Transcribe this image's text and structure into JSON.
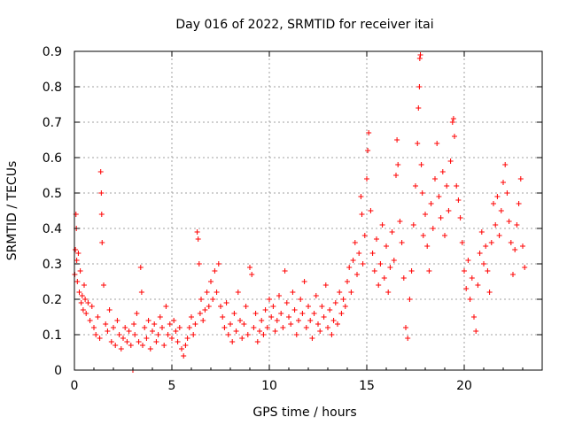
{
  "chart_data": {
    "type": "scatter",
    "title": "Day 016 of 2022, SRMTID for receiver itai",
    "xlabel": "GPS time / hours",
    "ylabel": "SRMTID / TECUs",
    "xlim": [
      0,
      24
    ],
    "ylim": [
      0,
      0.9
    ],
    "xticks": [
      0,
      5,
      10,
      15,
      20
    ],
    "xtick_labels": [
      "0",
      "5",
      "10",
      "15",
      "20"
    ],
    "yticks": [
      0,
      0.1,
      0.2,
      0.3,
      0.4,
      0.5,
      0.6,
      0.7,
      0.8,
      0.9
    ],
    "ytick_labels": [
      "0",
      "0.1",
      "0.2",
      "0.3",
      "0.4",
      "0.5",
      "0.6",
      "0.7",
      "0.8",
      "0.9"
    ],
    "grid": true,
    "marker": "+",
    "series": [
      {
        "name": "SRMTID",
        "color": "#ff0000",
        "points": [
          [
            0.02,
            0.27
          ],
          [
            0.05,
            0.34
          ],
          [
            0.08,
            0.44
          ],
          [
            0.1,
            0.4
          ],
          [
            0.12,
            0.31
          ],
          [
            0.15,
            0.25
          ],
          [
            0.2,
            0.33
          ],
          [
            0.25,
            0.22
          ],
          [
            0.3,
            0.28
          ],
          [
            0.35,
            0.19
          ],
          [
            0.4,
            0.21
          ],
          [
            0.45,
            0.17
          ],
          [
            0.5,
            0.24
          ],
          [
            0.55,
            0.2
          ],
          [
            0.6,
            0.16
          ],
          [
            0.7,
            0.19
          ],
          [
            0.8,
            0.14
          ],
          [
            0.9,
            0.18
          ],
          [
            1.0,
            0.12
          ],
          [
            1.1,
            0.1
          ],
          [
            1.2,
            0.15
          ],
          [
            1.3,
            0.09
          ],
          [
            1.35,
            0.56
          ],
          [
            1.38,
            0.5
          ],
          [
            1.4,
            0.44
          ],
          [
            1.42,
            0.36
          ],
          [
            1.5,
            0.24
          ],
          [
            1.6,
            0.13
          ],
          [
            1.7,
            0.11
          ],
          [
            1.8,
            0.17
          ],
          [
            1.9,
            0.08
          ],
          [
            2.0,
            0.12
          ],
          [
            2.1,
            0.07
          ],
          [
            2.2,
            0.14
          ],
          [
            2.3,
            0.1
          ],
          [
            2.4,
            0.06
          ],
          [
            2.5,
            0.09
          ],
          [
            2.6,
            0.12
          ],
          [
            2.7,
            0.08
          ],
          [
            2.8,
            0.11
          ],
          [
            2.9,
            0.07
          ],
          [
            3.0,
            0.0
          ],
          [
            3.05,
            0.13
          ],
          [
            3.1,
            0.1
          ],
          [
            3.2,
            0.16
          ],
          [
            3.3,
            0.08
          ],
          [
            3.4,
            0.29
          ],
          [
            3.45,
            0.22
          ],
          [
            3.5,
            0.07
          ],
          [
            3.6,
            0.12
          ],
          [
            3.7,
            0.09
          ],
          [
            3.8,
            0.14
          ],
          [
            3.9,
            0.06
          ],
          [
            4.0,
            0.11
          ],
          [
            4.1,
            0.13
          ],
          [
            4.2,
            0.08
          ],
          [
            4.3,
            0.1
          ],
          [
            4.4,
            0.15
          ],
          [
            4.5,
            0.12
          ],
          [
            4.6,
            0.07
          ],
          [
            4.7,
            0.18
          ],
          [
            4.8,
            0.1
          ],
          [
            4.9,
            0.13
          ],
          [
            5.0,
            0.09
          ],
          [
            5.1,
            0.14
          ],
          [
            5.2,
            0.11
          ],
          [
            5.3,
            0.08
          ],
          [
            5.4,
            0.12
          ],
          [
            5.5,
            0.06
          ],
          [
            5.6,
            0.04
          ],
          [
            5.7,
            0.07
          ],
          [
            5.8,
            0.09
          ],
          [
            5.9,
            0.12
          ],
          [
            6.0,
            0.15
          ],
          [
            6.1,
            0.1
          ],
          [
            6.2,
            0.13
          ],
          [
            6.3,
            0.39
          ],
          [
            6.35,
            0.37
          ],
          [
            6.4,
            0.3
          ],
          [
            6.45,
            0.16
          ],
          [
            6.5,
            0.2
          ],
          [
            6.6,
            0.14
          ],
          [
            6.7,
            0.17
          ],
          [
            6.8,
            0.22
          ],
          [
            6.9,
            0.18
          ],
          [
            7.0,
            0.25
          ],
          [
            7.1,
            0.2
          ],
          [
            7.2,
            0.28
          ],
          [
            7.3,
            0.22
          ],
          [
            7.4,
            0.3
          ],
          [
            7.5,
            0.18
          ],
          [
            7.6,
            0.15
          ],
          [
            7.7,
            0.12
          ],
          [
            7.8,
            0.19
          ],
          [
            7.9,
            0.1
          ],
          [
            8.0,
            0.13
          ],
          [
            8.1,
            0.08
          ],
          [
            8.2,
            0.16
          ],
          [
            8.3,
            0.11
          ],
          [
            8.4,
            0.22
          ],
          [
            8.5,
            0.14
          ],
          [
            8.6,
            0.09
          ],
          [
            8.7,
            0.13
          ],
          [
            8.8,
            0.18
          ],
          [
            8.9,
            0.1
          ],
          [
            9.0,
            0.29
          ],
          [
            9.1,
            0.27
          ],
          [
            9.2,
            0.12
          ],
          [
            9.3,
            0.16
          ],
          [
            9.4,
            0.08
          ],
          [
            9.5,
            0.11
          ],
          [
            9.6,
            0.14
          ],
          [
            9.7,
            0.1
          ],
          [
            9.8,
            0.17
          ],
          [
            9.9,
            0.12
          ],
          [
            10.0,
            0.2
          ],
          [
            10.1,
            0.15
          ],
          [
            10.2,
            0.18
          ],
          [
            10.3,
            0.11
          ],
          [
            10.4,
            0.14
          ],
          [
            10.5,
            0.21
          ],
          [
            10.6,
            0.16
          ],
          [
            10.7,
            0.12
          ],
          [
            10.8,
            0.28
          ],
          [
            10.9,
            0.19
          ],
          [
            11.0,
            0.15
          ],
          [
            11.1,
            0.13
          ],
          [
            11.2,
            0.22
          ],
          [
            11.3,
            0.17
          ],
          [
            11.4,
            0.1
          ],
          [
            11.5,
            0.14
          ],
          [
            11.6,
            0.2
          ],
          [
            11.7,
            0.16
          ],
          [
            11.8,
            0.25
          ],
          [
            11.9,
            0.12
          ],
          [
            12.0,
            0.18
          ],
          [
            12.1,
            0.14
          ],
          [
            12.2,
            0.09
          ],
          [
            12.3,
            0.16
          ],
          [
            12.4,
            0.21
          ],
          [
            12.5,
            0.13
          ],
          [
            12.6,
            0.11
          ],
          [
            12.7,
            0.18
          ],
          [
            12.8,
            0.15
          ],
          [
            12.9,
            0.24
          ],
          [
            13.0,
            0.12
          ],
          [
            13.1,
            0.17
          ],
          [
            13.2,
            0.1
          ],
          [
            13.3,
            0.14
          ],
          [
            13.4,
            0.19
          ],
          [
            13.5,
            0.13
          ],
          [
            13.6,
            0.22
          ],
          [
            13.7,
            0.16
          ],
          [
            13.8,
            0.2
          ],
          [
            13.9,
            0.18
          ],
          [
            14.0,
            0.25
          ],
          [
            14.1,
            0.29
          ],
          [
            14.2,
            0.22
          ],
          [
            14.3,
            0.31
          ],
          [
            14.4,
            0.36
          ],
          [
            14.5,
            0.27
          ],
          [
            14.6,
            0.33
          ],
          [
            14.7,
            0.49
          ],
          [
            14.75,
            0.44
          ],
          [
            14.8,
            0.3
          ],
          [
            14.9,
            0.38
          ],
          [
            15.0,
            0.54
          ],
          [
            15.05,
            0.62
          ],
          [
            15.1,
            0.67
          ],
          [
            15.2,
            0.45
          ],
          [
            15.3,
            0.33
          ],
          [
            15.4,
            0.28
          ],
          [
            15.5,
            0.37
          ],
          [
            15.6,
            0.24
          ],
          [
            15.7,
            0.3
          ],
          [
            15.8,
            0.41
          ],
          [
            15.9,
            0.26
          ],
          [
            16.0,
            0.35
          ],
          [
            16.1,
            0.22
          ],
          [
            16.2,
            0.29
          ],
          [
            16.3,
            0.39
          ],
          [
            16.4,
            0.31
          ],
          [
            16.5,
            0.55
          ],
          [
            16.55,
            0.65
          ],
          [
            16.6,
            0.58
          ],
          [
            16.7,
            0.42
          ],
          [
            16.8,
            0.36
          ],
          [
            16.9,
            0.26
          ],
          [
            17.0,
            0.12
          ],
          [
            17.1,
            0.09
          ],
          [
            17.2,
            0.2
          ],
          [
            17.3,
            0.28
          ],
          [
            17.4,
            0.41
          ],
          [
            17.5,
            0.52
          ],
          [
            17.6,
            0.64
          ],
          [
            17.65,
            0.74
          ],
          [
            17.7,
            0.8
          ],
          [
            17.72,
            0.88
          ],
          [
            17.75,
            0.89
          ],
          [
            17.8,
            0.58
          ],
          [
            17.85,
            0.5
          ],
          [
            17.9,
            0.38
          ],
          [
            18.0,
            0.44
          ],
          [
            18.1,
            0.35
          ],
          [
            18.2,
            0.28
          ],
          [
            18.3,
            0.47
          ],
          [
            18.4,
            0.4
          ],
          [
            18.5,
            0.54
          ],
          [
            18.6,
            0.64
          ],
          [
            18.7,
            0.49
          ],
          [
            18.8,
            0.43
          ],
          [
            18.9,
            0.56
          ],
          [
            19.0,
            0.38
          ],
          [
            19.1,
            0.52
          ],
          [
            19.2,
            0.45
          ],
          [
            19.3,
            0.59
          ],
          [
            19.4,
            0.7
          ],
          [
            19.45,
            0.71
          ],
          [
            19.5,
            0.66
          ],
          [
            19.6,
            0.52
          ],
          [
            19.7,
            0.48
          ],
          [
            19.8,
            0.43
          ],
          [
            19.9,
            0.36
          ],
          [
            20.0,
            0.28
          ],
          [
            20.1,
            0.23
          ],
          [
            20.2,
            0.31
          ],
          [
            20.3,
            0.2
          ],
          [
            20.4,
            0.26
          ],
          [
            20.5,
            0.15
          ],
          [
            20.6,
            0.11
          ],
          [
            20.7,
            0.24
          ],
          [
            20.8,
            0.33
          ],
          [
            20.9,
            0.39
          ],
          [
            21.0,
            0.3
          ],
          [
            21.1,
            0.35
          ],
          [
            21.2,
            0.28
          ],
          [
            21.3,
            0.22
          ],
          [
            21.4,
            0.36
          ],
          [
            21.5,
            0.47
          ],
          [
            21.6,
            0.41
          ],
          [
            21.7,
            0.49
          ],
          [
            21.8,
            0.38
          ],
          [
            21.9,
            0.45
          ],
          [
            22.0,
            0.53
          ],
          [
            22.1,
            0.58
          ],
          [
            22.2,
            0.5
          ],
          [
            22.3,
            0.42
          ],
          [
            22.4,
            0.36
          ],
          [
            22.5,
            0.27
          ],
          [
            22.6,
            0.34
          ],
          [
            22.7,
            0.41
          ],
          [
            22.8,
            0.47
          ],
          [
            22.9,
            0.54
          ],
          [
            23.0,
            0.35
          ],
          [
            23.1,
            0.29
          ]
        ]
      }
    ]
  }
}
